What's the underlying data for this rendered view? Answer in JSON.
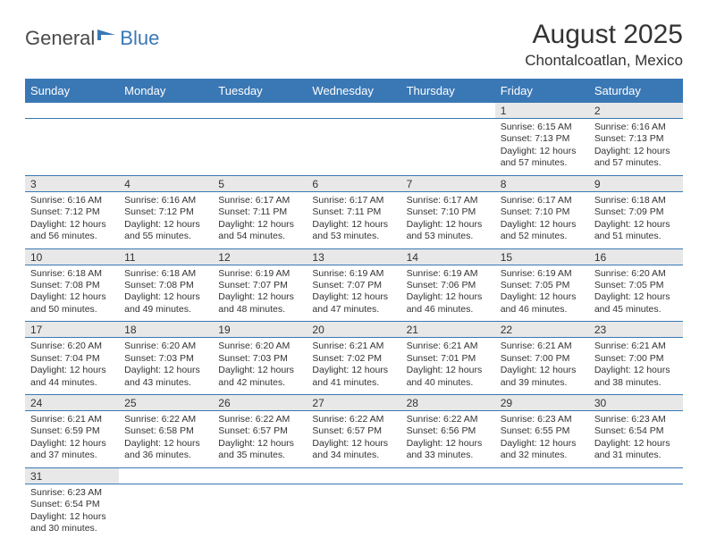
{
  "logo": {
    "part1": "General",
    "part2": "Blue"
  },
  "title": "August 2025",
  "location": "Chontalcoatlan, Mexico",
  "colors": {
    "headerBg": "#3a78b5",
    "headerText": "#ffffff",
    "dayBg": "#e8e8e8",
    "rowBorder": "#3a78b5",
    "text": "#333333",
    "logoGray": "#4a4a4a",
    "logoBlue": "#3a78b5"
  },
  "dayHeaders": [
    "Sunday",
    "Monday",
    "Tuesday",
    "Wednesday",
    "Thursday",
    "Friday",
    "Saturday"
  ],
  "weeks": [
    [
      null,
      null,
      null,
      null,
      null,
      {
        "n": "1",
        "sr": "Sunrise: 6:15 AM",
        "ss": "Sunset: 7:13 PM",
        "d1": "Daylight: 12 hours",
        "d2": "and 57 minutes."
      },
      {
        "n": "2",
        "sr": "Sunrise: 6:16 AM",
        "ss": "Sunset: 7:13 PM",
        "d1": "Daylight: 12 hours",
        "d2": "and 57 minutes."
      }
    ],
    [
      {
        "n": "3",
        "sr": "Sunrise: 6:16 AM",
        "ss": "Sunset: 7:12 PM",
        "d1": "Daylight: 12 hours",
        "d2": "and 56 minutes."
      },
      {
        "n": "4",
        "sr": "Sunrise: 6:16 AM",
        "ss": "Sunset: 7:12 PM",
        "d1": "Daylight: 12 hours",
        "d2": "and 55 minutes."
      },
      {
        "n": "5",
        "sr": "Sunrise: 6:17 AM",
        "ss": "Sunset: 7:11 PM",
        "d1": "Daylight: 12 hours",
        "d2": "and 54 minutes."
      },
      {
        "n": "6",
        "sr": "Sunrise: 6:17 AM",
        "ss": "Sunset: 7:11 PM",
        "d1": "Daylight: 12 hours",
        "d2": "and 53 minutes."
      },
      {
        "n": "7",
        "sr": "Sunrise: 6:17 AM",
        "ss": "Sunset: 7:10 PM",
        "d1": "Daylight: 12 hours",
        "d2": "and 53 minutes."
      },
      {
        "n": "8",
        "sr": "Sunrise: 6:17 AM",
        "ss": "Sunset: 7:10 PM",
        "d1": "Daylight: 12 hours",
        "d2": "and 52 minutes."
      },
      {
        "n": "9",
        "sr": "Sunrise: 6:18 AM",
        "ss": "Sunset: 7:09 PM",
        "d1": "Daylight: 12 hours",
        "d2": "and 51 minutes."
      }
    ],
    [
      {
        "n": "10",
        "sr": "Sunrise: 6:18 AM",
        "ss": "Sunset: 7:08 PM",
        "d1": "Daylight: 12 hours",
        "d2": "and 50 minutes."
      },
      {
        "n": "11",
        "sr": "Sunrise: 6:18 AM",
        "ss": "Sunset: 7:08 PM",
        "d1": "Daylight: 12 hours",
        "d2": "and 49 minutes."
      },
      {
        "n": "12",
        "sr": "Sunrise: 6:19 AM",
        "ss": "Sunset: 7:07 PM",
        "d1": "Daylight: 12 hours",
        "d2": "and 48 minutes."
      },
      {
        "n": "13",
        "sr": "Sunrise: 6:19 AM",
        "ss": "Sunset: 7:07 PM",
        "d1": "Daylight: 12 hours",
        "d2": "and 47 minutes."
      },
      {
        "n": "14",
        "sr": "Sunrise: 6:19 AM",
        "ss": "Sunset: 7:06 PM",
        "d1": "Daylight: 12 hours",
        "d2": "and 46 minutes."
      },
      {
        "n": "15",
        "sr": "Sunrise: 6:19 AM",
        "ss": "Sunset: 7:05 PM",
        "d1": "Daylight: 12 hours",
        "d2": "and 46 minutes."
      },
      {
        "n": "16",
        "sr": "Sunrise: 6:20 AM",
        "ss": "Sunset: 7:05 PM",
        "d1": "Daylight: 12 hours",
        "d2": "and 45 minutes."
      }
    ],
    [
      {
        "n": "17",
        "sr": "Sunrise: 6:20 AM",
        "ss": "Sunset: 7:04 PM",
        "d1": "Daylight: 12 hours",
        "d2": "and 44 minutes."
      },
      {
        "n": "18",
        "sr": "Sunrise: 6:20 AM",
        "ss": "Sunset: 7:03 PM",
        "d1": "Daylight: 12 hours",
        "d2": "and 43 minutes."
      },
      {
        "n": "19",
        "sr": "Sunrise: 6:20 AM",
        "ss": "Sunset: 7:03 PM",
        "d1": "Daylight: 12 hours",
        "d2": "and 42 minutes."
      },
      {
        "n": "20",
        "sr": "Sunrise: 6:21 AM",
        "ss": "Sunset: 7:02 PM",
        "d1": "Daylight: 12 hours",
        "d2": "and 41 minutes."
      },
      {
        "n": "21",
        "sr": "Sunrise: 6:21 AM",
        "ss": "Sunset: 7:01 PM",
        "d1": "Daylight: 12 hours",
        "d2": "and 40 minutes."
      },
      {
        "n": "22",
        "sr": "Sunrise: 6:21 AM",
        "ss": "Sunset: 7:00 PM",
        "d1": "Daylight: 12 hours",
        "d2": "and 39 minutes."
      },
      {
        "n": "23",
        "sr": "Sunrise: 6:21 AM",
        "ss": "Sunset: 7:00 PM",
        "d1": "Daylight: 12 hours",
        "d2": "and 38 minutes."
      }
    ],
    [
      {
        "n": "24",
        "sr": "Sunrise: 6:21 AM",
        "ss": "Sunset: 6:59 PM",
        "d1": "Daylight: 12 hours",
        "d2": "and 37 minutes."
      },
      {
        "n": "25",
        "sr": "Sunrise: 6:22 AM",
        "ss": "Sunset: 6:58 PM",
        "d1": "Daylight: 12 hours",
        "d2": "and 36 minutes."
      },
      {
        "n": "26",
        "sr": "Sunrise: 6:22 AM",
        "ss": "Sunset: 6:57 PM",
        "d1": "Daylight: 12 hours",
        "d2": "and 35 minutes."
      },
      {
        "n": "27",
        "sr": "Sunrise: 6:22 AM",
        "ss": "Sunset: 6:57 PM",
        "d1": "Daylight: 12 hours",
        "d2": "and 34 minutes."
      },
      {
        "n": "28",
        "sr": "Sunrise: 6:22 AM",
        "ss": "Sunset: 6:56 PM",
        "d1": "Daylight: 12 hours",
        "d2": "and 33 minutes."
      },
      {
        "n": "29",
        "sr": "Sunrise: 6:23 AM",
        "ss": "Sunset: 6:55 PM",
        "d1": "Daylight: 12 hours",
        "d2": "and 32 minutes."
      },
      {
        "n": "30",
        "sr": "Sunrise: 6:23 AM",
        "ss": "Sunset: 6:54 PM",
        "d1": "Daylight: 12 hours",
        "d2": "and 31 minutes."
      }
    ],
    [
      {
        "n": "31",
        "sr": "Sunrise: 6:23 AM",
        "ss": "Sunset: 6:54 PM",
        "d1": "Daylight: 12 hours",
        "d2": "and 30 minutes."
      },
      null,
      null,
      null,
      null,
      null,
      null
    ]
  ]
}
